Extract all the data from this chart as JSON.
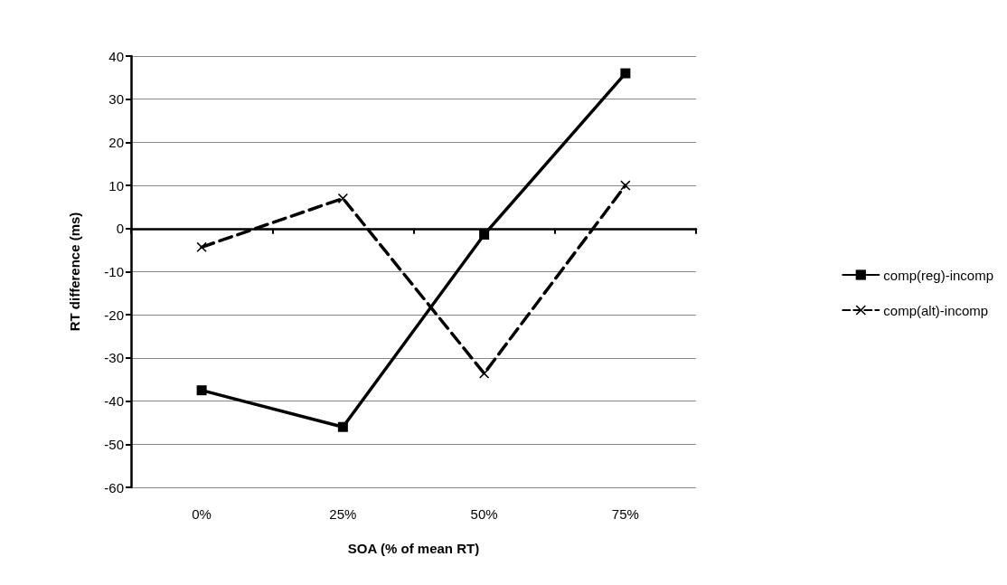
{
  "chart_data": {
    "type": "line",
    "xlabel": "SOA (% of mean RT)",
    "ylabel": "RT difference (ms)",
    "categories": [
      "0%",
      "25%",
      "50%",
      "75%"
    ],
    "series": [
      {
        "name": "comp(reg)-incomp",
        "color": "#000000",
        "marker": "square",
        "line_style": "solid",
        "values": [
          -37.5,
          -46,
          -1.4,
          36
        ]
      },
      {
        "name": "comp(alt)-incomp",
        "color": "#000000",
        "marker": "cross",
        "line_style": "dashed",
        "values": [
          -4.3,
          7,
          -33.6,
          10
        ]
      }
    ],
    "ylim": [
      -60,
      40
    ],
    "yticks": [
      -60,
      -50,
      -40,
      -30,
      -20,
      -10,
      0,
      10,
      20,
      30,
      40
    ],
    "grid": "y",
    "legend": "right"
  }
}
